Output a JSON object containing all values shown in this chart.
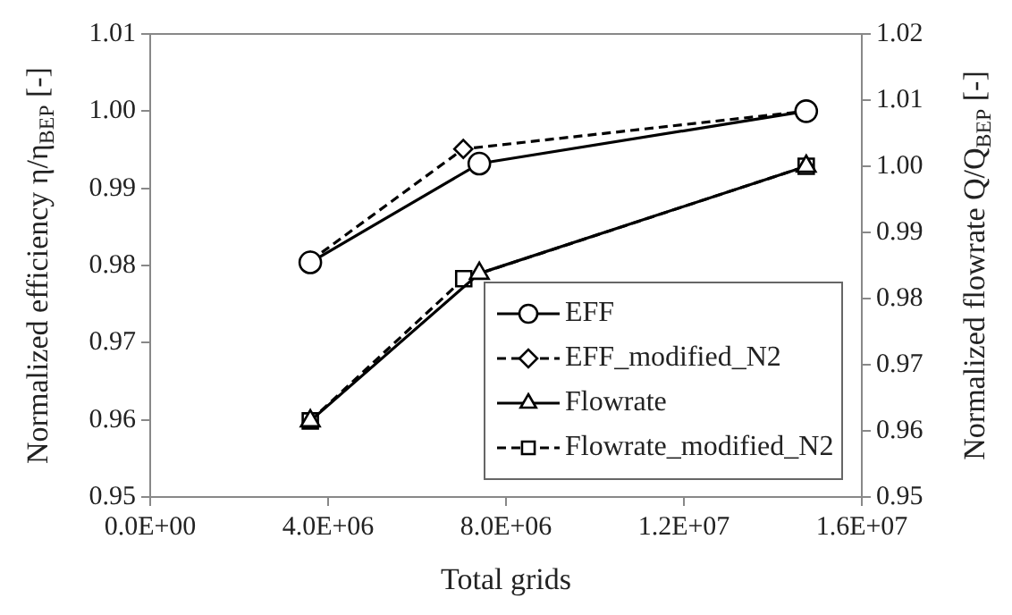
{
  "chart_data": {
    "type": "line",
    "xlabel": "Total grids",
    "ylabel": "Normalized efficiency η/η$_{BEP}$ [-]",
    "y2label": "Normalized flowrate Q/Q$_{BEP}$ [-]",
    "xlim": [
      0,
      16000000
    ],
    "xticks": [
      {
        "value": 0,
        "label": "0.0E+00"
      },
      {
        "value": 4000000,
        "label": "4.0E+06"
      },
      {
        "value": 8000000,
        "label": "8.0E+06"
      },
      {
        "value": 12000000,
        "label": "1.2E+07"
      },
      {
        "value": 16000000,
        "label": "1.6E+07"
      }
    ],
    "ylim": [
      0.95,
      1.01
    ],
    "yticks": [
      {
        "value": 0.95,
        "label": "0.95"
      },
      {
        "value": 0.96,
        "label": "0.96"
      },
      {
        "value": 0.97,
        "label": "0.97"
      },
      {
        "value": 0.98,
        "label": "0.98"
      },
      {
        "value": 0.99,
        "label": "0.99"
      },
      {
        "value": 1.0,
        "label": "1.00"
      },
      {
        "value": 1.01,
        "label": "1.01"
      }
    ],
    "y2lim": [
      0.95,
      1.02
    ],
    "y2ticks": [
      {
        "value": 0.95,
        "label": "0.95"
      },
      {
        "value": 0.96,
        "label": "0.96"
      },
      {
        "value": 0.97,
        "label": "0.97"
      },
      {
        "value": 0.98,
        "label": "0.98"
      },
      {
        "value": 0.99,
        "label": "0.99"
      },
      {
        "value": 1.0,
        "label": "1.00"
      },
      {
        "value": 1.01,
        "label": "1.01"
      },
      {
        "value": 1.02,
        "label": "1.02"
      }
    ],
    "grid": false,
    "legend": "bottom right",
    "series": [
      {
        "name": "EFF",
        "color": "#000000",
        "marker": "circle",
        "line_style": "solid",
        "x": [
          3600000,
          7400000,
          14750000
        ],
        "values": [
          0.9804,
          0.9932,
          1.0
        ]
      },
      {
        "name": "EFF_modified_N2",
        "color": "#000000",
        "marker": "diamond",
        "line_style": "dashed",
        "x": [
          3600000,
          7040000,
          14750000
        ],
        "values": [
          0.9806,
          0.9951,
          1.0
        ]
      },
      {
        "name": "Flowrate",
        "color": "#000000",
        "marker": "triangle",
        "line_style": "solid",
        "axis": "y2",
        "x": [
          3600000,
          7400000,
          14750000
        ],
        "values": [
          0.9615,
          0.9838,
          1.0
        ]
      },
      {
        "name": "Flowrate_modified_N2",
        "color": "#000000",
        "marker": "square",
        "line_style": "dashed",
        "axis": "y2",
        "x": [
          3600000,
          7050000,
          14750000
        ],
        "values": [
          0.9615,
          0.983,
          1.0
        ]
      }
    ]
  }
}
